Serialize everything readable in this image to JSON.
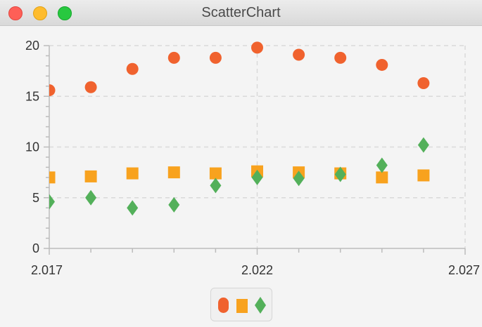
{
  "window": {
    "title": "ScatterChart",
    "controls": [
      "close-button",
      "minimize-button",
      "maximize-button"
    ]
  },
  "colors": {
    "series1": "#f0622e",
    "series2": "#f8a21e",
    "series3": "#53b05a",
    "grid": "#d9d9d9",
    "axis": "#bcbcbc"
  },
  "chart_data": {
    "type": "scatter",
    "title": "",
    "xlabel": "",
    "ylabel": "",
    "xlim": [
      2.017,
      2.027
    ],
    "ylim": [
      0,
      20
    ],
    "x_ticks": [
      "2.017",
      "2.022",
      "2.027"
    ],
    "y_ticks": [
      "0",
      "5",
      "10",
      "15",
      "20"
    ],
    "grid": true,
    "legend": "bottom-center",
    "series": [
      {
        "marker": "circle",
        "color": "#f0622e",
        "x": [
          2.017,
          2.018,
          2.019,
          2.02,
          2.021,
          2.022,
          2.023,
          2.024,
          2.025,
          2.026
        ],
        "y": [
          15.6,
          15.9,
          17.7,
          18.8,
          18.8,
          19.8,
          19.1,
          18.8,
          18.1,
          16.3
        ]
      },
      {
        "marker": "square",
        "color": "#f8a21e",
        "x": [
          2.017,
          2.018,
          2.019,
          2.02,
          2.021,
          2.022,
          2.023,
          2.024,
          2.025,
          2.026
        ],
        "y": [
          7.0,
          7.1,
          7.4,
          7.5,
          7.4,
          7.6,
          7.5,
          7.4,
          7.0,
          7.2
        ]
      },
      {
        "marker": "diamond",
        "color": "#53b05a",
        "x": [
          2.017,
          2.018,
          2.019,
          2.02,
          2.021,
          2.022,
          2.023,
          2.024,
          2.025,
          2.026
        ],
        "y": [
          4.6,
          5.0,
          4.0,
          4.3,
          6.2,
          7.0,
          6.9,
          7.3,
          8.2,
          10.2
        ]
      }
    ]
  }
}
